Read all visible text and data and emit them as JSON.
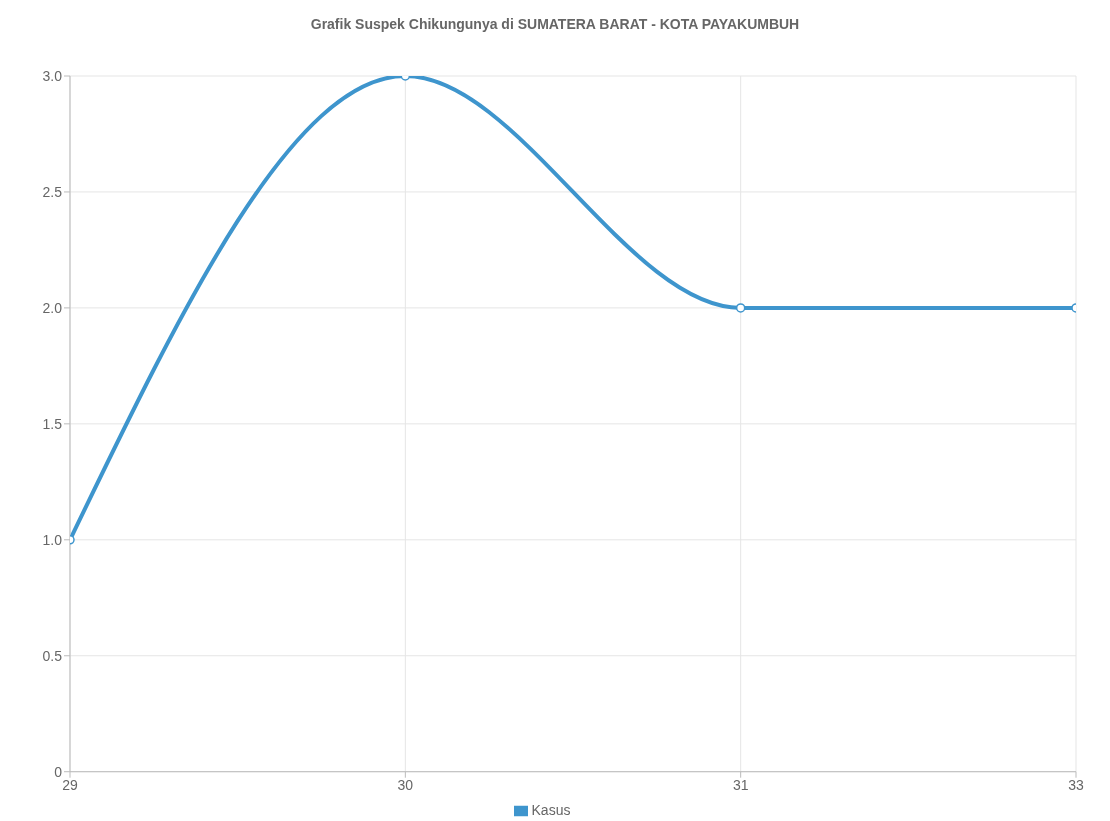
{
  "chart_data": {
    "type": "line",
    "title": "Grafik Suspek Chikungunya di SUMATERA BARAT - KOTA PAYAKUMBUH",
    "categories": [
      "29",
      "30",
      "31",
      "33"
    ],
    "series": [
      {
        "name": "Kasus",
        "color": "#3e95cd",
        "values": [
          1,
          3,
          2,
          2
        ]
      }
    ],
    "ylim": [
      0,
      3
    ],
    "yticks": [
      0,
      0.5,
      {
        "value": 1,
        "label": "1.0"
      },
      1.5,
      {
        "value": 2,
        "label": "2.0"
      },
      2.5,
      {
        "value": 3,
        "label": "3.0"
      }
    ],
    "grid": true,
    "legend": "bottom",
    "marker": "circle",
    "line_style": "solid"
  }
}
